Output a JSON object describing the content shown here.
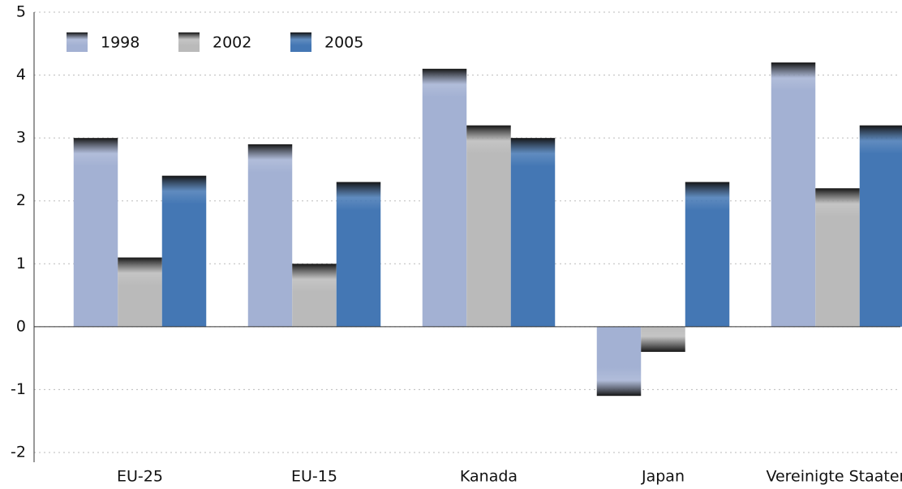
{
  "chart_data": {
    "type": "bar",
    "categories": [
      "EU-25",
      "EU-15",
      "Kanada",
      "Japan",
      "Vereinigte Staaten"
    ],
    "series": [
      {
        "name": "1998",
        "color": "#a3b1d3",
        "values": [
          3.0,
          2.9,
          4.1,
          -1.1,
          4.2
        ]
      },
      {
        "name": "2002",
        "color": "#bababa",
        "values": [
          1.1,
          1.0,
          3.2,
          -0.4,
          2.2
        ]
      },
      {
        "name": "2005",
        "color": "#4477b4",
        "values": [
          2.4,
          2.3,
          3.0,
          2.3,
          3.2
        ]
      }
    ],
    "ylim": [
      -2,
      5
    ],
    "yticks": [
      -2,
      -1,
      0,
      1,
      2,
      3,
      4,
      5
    ],
    "grid": true,
    "legend": "upper left"
  }
}
